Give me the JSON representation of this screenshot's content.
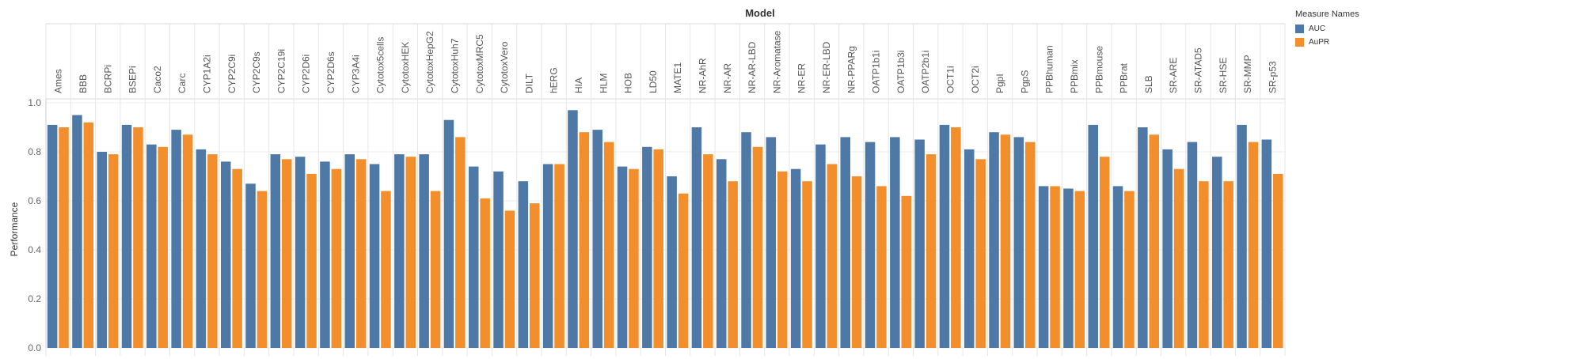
{
  "chart_data": {
    "type": "bar",
    "title": "Model",
    "xlabel": "",
    "ylabel": "Performance",
    "ylim": [
      0,
      1.0
    ],
    "yticks": [
      "0.0",
      "0.2",
      "0.4",
      "0.6",
      "0.8",
      "1.0"
    ],
    "grid": true,
    "legend": {
      "title": "Measure Names",
      "position": "top-right"
    },
    "colors": {
      "AUC": "#4e79a7",
      "AuPR": "#f28e2b"
    },
    "categories": [
      "Ames",
      "BBB",
      "BCRPi",
      "BSEPi",
      "Caco2",
      "Carc",
      "CYP1A2i",
      "CYP2C9i",
      "CYP2C9s",
      "CYP2C19i",
      "CYP2D6i",
      "CYP2D6s",
      "CYP3A4i",
      "Cytotox5cells",
      "CytotoxHEK",
      "CytotoxHepG2",
      "CytotoxHuh7",
      "CytotoxMRC5",
      "CytotoxVero",
      "DILT",
      "hERG",
      "HIA",
      "HLM",
      "HOB",
      "LD50",
      "MATE1",
      "NR-AhR",
      "NR-AR",
      "NR-AR-LBD",
      "NR-Aromatase",
      "NR-ER",
      "NR-ER-LBD",
      "NR-PPARg",
      "OATP1b1i",
      "OATP1b3i",
      "OATP2b1i",
      "OCT1i",
      "OCT2i",
      "PgpI",
      "PgpS",
      "PPBhuman",
      "PPBmix",
      "PPBmouse",
      "PPBrat",
      "SLB",
      "SR-ARE",
      "SR-ATAD5",
      "SR-HSE",
      "SR-MMP",
      "SR-p53"
    ],
    "series": [
      {
        "name": "AUC",
        "values": [
          0.91,
          0.95,
          0.8,
          0.91,
          0.83,
          0.89,
          0.81,
          0.76,
          0.67,
          0.79,
          0.78,
          0.76,
          0.79,
          0.75,
          0.79,
          0.79,
          0.93,
          0.74,
          0.72,
          0.68,
          0.75,
          0.97,
          0.89,
          0.74,
          0.82,
          0.7,
          0.9,
          0.77,
          0.88,
          0.86,
          0.73,
          0.83,
          0.86,
          0.84,
          0.86,
          0.85,
          0.91,
          0.81,
          0.88,
          0.86,
          0.66,
          0.65,
          0.91,
          0.66,
          0.9,
          0.81,
          0.84,
          0.78,
          0.91,
          0.85
        ]
      },
      {
        "name": "AuPR",
        "values": [
          0.9,
          0.92,
          0.79,
          0.9,
          0.82,
          0.87,
          0.79,
          0.73,
          0.64,
          0.77,
          0.71,
          0.73,
          0.77,
          0.64,
          0.78,
          0.64,
          0.86,
          0.61,
          0.56,
          0.59,
          0.75,
          0.88,
          0.84,
          0.73,
          0.81,
          0.63,
          0.79,
          0.68,
          0.82,
          0.72,
          0.68,
          0.75,
          0.7,
          0.66,
          0.62,
          0.79,
          0.9,
          0.77,
          0.87,
          0.84,
          0.66,
          0.64,
          0.78,
          0.64,
          0.87,
          0.73,
          0.68,
          0.68,
          0.84,
          0.71
        ]
      }
    ]
  }
}
